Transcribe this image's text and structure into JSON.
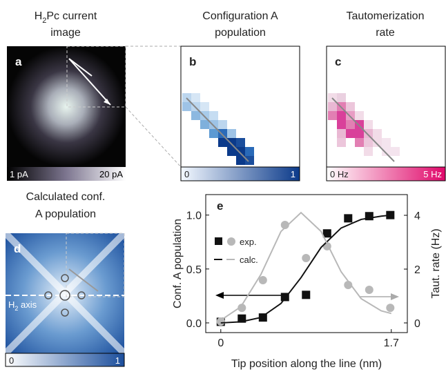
{
  "panel_a": {
    "label": "a",
    "title_h": "H",
    "title_sub": "2",
    "title_rest": "Pc current",
    "title_line2": "image",
    "scale_min": "1 pA",
    "scale_max": "20 pA"
  },
  "panel_b": {
    "label": "b",
    "title_line1": "Configuration A",
    "title_line2": "population",
    "scale_min": "0",
    "scale_max": "1"
  },
  "panel_c": {
    "label": "c",
    "title_line1": "Tautomerization",
    "title_line2": "rate",
    "scale_min": "0 Hz",
    "scale_max": "5 Hz"
  },
  "panel_d": {
    "label": "d",
    "title_line1": "Calculated conf.",
    "title_line2": "A population",
    "scale_min": "0",
    "scale_max": "1",
    "axis_h": "H",
    "axis_sub": "2",
    "axis_rest": " axis"
  },
  "chart_data": {
    "type": "scatter",
    "label": "e",
    "xlabel": "Tip position along the line (nm)",
    "ylabel": "Conf. A population",
    "y2label": "Taut. rate (Hz)",
    "xlim": [
      -0.15,
      1.86
    ],
    "xticks": [
      0,
      1.7
    ],
    "ylim": [
      -0.09,
      1.19
    ],
    "yticks": [
      {
        "value": 0,
        "label": "0.0"
      },
      {
        "value": 0.5,
        "label": "0.5"
      },
      {
        "value": 1,
        "label": "1.0"
      }
    ],
    "y2lim": [
      -0.36,
      4.77
    ],
    "y2ticks": [
      0,
      2,
      4
    ],
    "legend": [
      "exp.",
      "calc."
    ],
    "series": [
      {
        "kind": "points",
        "marker": "square",
        "color": "#111111",
        "axis": "y",
        "x": [
          0,
          0.21,
          0.42,
          0.64,
          0.85,
          1.06,
          1.27,
          1.48,
          1.69
        ],
        "values": [
          0.01,
          0.04,
          0.05,
          0.24,
          0.26,
          0.83,
          0.97,
          0.99,
          1.0
        ]
      },
      {
        "kind": "points",
        "marker": "circle",
        "color": "#b8b8b8",
        "axis": "y2",
        "x": [
          0,
          0.21,
          0.42,
          0.64,
          0.85,
          1.06,
          1.27,
          1.48,
          1.69
        ],
        "values": [
          0.05,
          0.56,
          1.59,
          3.64,
          2.41,
          2.85,
          1.41,
          1.23,
          0.56
        ]
      },
      {
        "kind": "line",
        "color": "#111111",
        "axis": "y",
        "x": [
          0,
          0.2,
          0.4,
          0.6,
          0.8,
          1.0,
          1.2,
          1.4,
          1.6,
          1.7
        ],
        "values": [
          0.0,
          0.01,
          0.05,
          0.18,
          0.42,
          0.7,
          0.88,
          0.96,
          0.99,
          1.0
        ]
      },
      {
        "kind": "line",
        "color": "#b8b8b8",
        "axis": "y2",
        "x": [
          0,
          0.2,
          0.4,
          0.6,
          0.8,
          1.0,
          1.2,
          1.4,
          1.6,
          1.7
        ],
        "values": [
          0.1,
          0.6,
          1.8,
          3.4,
          4.1,
          3.4,
          1.9,
          0.9,
          0.45,
          0.35
        ]
      }
    ]
  }
}
